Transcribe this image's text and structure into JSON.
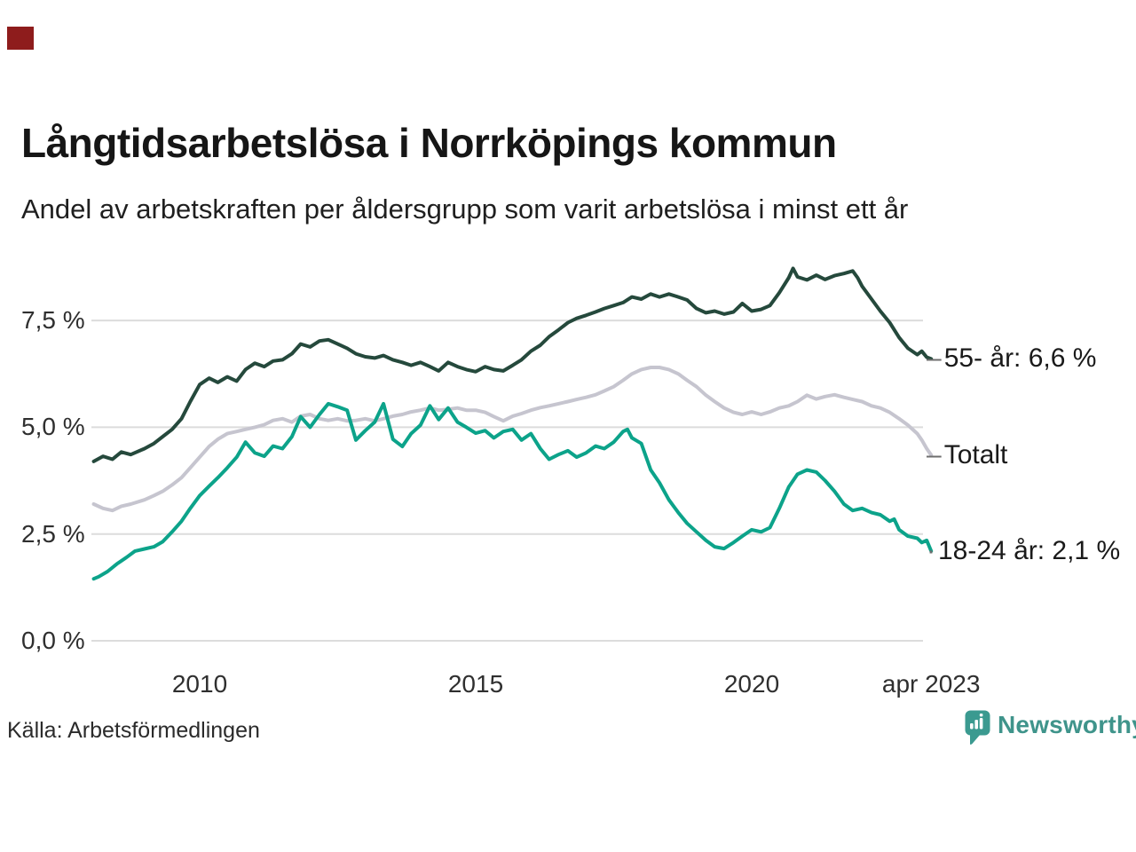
{
  "decor": {
    "corner_swatch_color": "#8e1c1c"
  },
  "header": {
    "title": "Långtidsarbetslösa i Norrköpings kommun",
    "subtitle": "Andel av arbetskraften per åldersgrupp som varit arbetslösa i minst ett år"
  },
  "source": {
    "label": "Källa: Arbetsförmedlingen"
  },
  "branding": {
    "name": "Newsworthy",
    "icon": "newsworthy-bubble-barchart-icon",
    "icon_color": "#3b9a90",
    "text_color": "#3f948b"
  },
  "chart_data": {
    "type": "line",
    "title": "Långtidsarbetslösa i Norrköpings kommun",
    "subtitle": "Andel av arbetskraften per åldersgrupp som varit arbetslösa i minst ett år",
    "unit": "% av arbetskraften",
    "x_axis": {
      "range": [
        2008.08,
        2023.25
      ],
      "ticks": [
        {
          "label": "2010",
          "value": 2010
        },
        {
          "label": "2015",
          "value": 2015
        },
        {
          "label": "2020",
          "value": 2020
        },
        {
          "label": "apr 2023",
          "value": 2023.25
        }
      ]
    },
    "y_axis": {
      "range": [
        0,
        9.3
      ],
      "gridlines": true,
      "gridline_color": "#dcdcdc",
      "ticks": [
        {
          "label": "0,0 %",
          "value": 0
        },
        {
          "label": "2,5 %",
          "value": 2.5
        },
        {
          "label": "5,0 %",
          "value": 5
        },
        {
          "label": "7,5 %",
          "value": 7.5
        }
      ]
    },
    "legend_position": "line-end-labels-right",
    "draw_order": [
      1,
      0,
      2
    ],
    "series": [
      {
        "name": "55- år",
        "end_label": "55- år: 6,6 %",
        "end_label_prefix": "–",
        "last_value": 6.6,
        "color": "#25493c",
        "points": [
          [
            2008.08,
            4.2
          ],
          [
            2008.25,
            4.32
          ],
          [
            2008.42,
            4.25
          ],
          [
            2008.58,
            4.42
          ],
          [
            2008.75,
            4.36
          ],
          [
            2009.0,
            4.5
          ],
          [
            2009.17,
            4.62
          ],
          [
            2009.33,
            4.78
          ],
          [
            2009.5,
            4.95
          ],
          [
            2009.67,
            5.2
          ],
          [
            2009.83,
            5.6
          ],
          [
            2010.0,
            6.0
          ],
          [
            2010.17,
            6.15
          ],
          [
            2010.33,
            6.05
          ],
          [
            2010.5,
            6.18
          ],
          [
            2010.67,
            6.08
          ],
          [
            2010.83,
            6.35
          ],
          [
            2011.0,
            6.5
          ],
          [
            2011.17,
            6.42
          ],
          [
            2011.33,
            6.55
          ],
          [
            2011.5,
            6.58
          ],
          [
            2011.67,
            6.72
          ],
          [
            2011.83,
            6.95
          ],
          [
            2012.0,
            6.88
          ],
          [
            2012.17,
            7.02
          ],
          [
            2012.33,
            7.05
          ],
          [
            2012.5,
            6.95
          ],
          [
            2012.67,
            6.85
          ],
          [
            2012.83,
            6.72
          ],
          [
            2013.0,
            6.65
          ],
          [
            2013.17,
            6.62
          ],
          [
            2013.33,
            6.68
          ],
          [
            2013.5,
            6.58
          ],
          [
            2013.67,
            6.52
          ],
          [
            2013.83,
            6.45
          ],
          [
            2014.0,
            6.52
          ],
          [
            2014.17,
            6.42
          ],
          [
            2014.33,
            6.32
          ],
          [
            2014.5,
            6.52
          ],
          [
            2014.67,
            6.42
          ],
          [
            2014.83,
            6.35
          ],
          [
            2015.0,
            6.3
          ],
          [
            2015.17,
            6.42
          ],
          [
            2015.33,
            6.35
          ],
          [
            2015.5,
            6.32
          ],
          [
            2015.67,
            6.45
          ],
          [
            2015.83,
            6.58
          ],
          [
            2016.0,
            6.78
          ],
          [
            2016.17,
            6.92
          ],
          [
            2016.33,
            7.12
          ],
          [
            2016.5,
            7.28
          ],
          [
            2016.67,
            7.45
          ],
          [
            2016.83,
            7.55
          ],
          [
            2017.0,
            7.62
          ],
          [
            2017.17,
            7.7
          ],
          [
            2017.33,
            7.78
          ],
          [
            2017.5,
            7.85
          ],
          [
            2017.67,
            7.92
          ],
          [
            2017.83,
            8.05
          ],
          [
            2018.0,
            8.0
          ],
          [
            2018.17,
            8.12
          ],
          [
            2018.33,
            8.05
          ],
          [
            2018.5,
            8.12
          ],
          [
            2018.67,
            8.05
          ],
          [
            2018.83,
            7.98
          ],
          [
            2019.0,
            7.78
          ],
          [
            2019.17,
            7.68
          ],
          [
            2019.33,
            7.72
          ],
          [
            2019.5,
            7.65
          ],
          [
            2019.67,
            7.7
          ],
          [
            2019.83,
            7.9
          ],
          [
            2020.0,
            7.72
          ],
          [
            2020.17,
            7.76
          ],
          [
            2020.33,
            7.85
          ],
          [
            2020.5,
            8.15
          ],
          [
            2020.67,
            8.5
          ],
          [
            2020.75,
            8.72
          ],
          [
            2020.83,
            8.52
          ],
          [
            2021.0,
            8.45
          ],
          [
            2021.17,
            8.56
          ],
          [
            2021.33,
            8.46
          ],
          [
            2021.5,
            8.55
          ],
          [
            2021.67,
            8.6
          ],
          [
            2021.83,
            8.66
          ],
          [
            2021.92,
            8.5
          ],
          [
            2022.0,
            8.3
          ],
          [
            2022.17,
            8.0
          ],
          [
            2022.33,
            7.72
          ],
          [
            2022.5,
            7.45
          ],
          [
            2022.67,
            7.1
          ],
          [
            2022.83,
            6.85
          ],
          [
            2023.0,
            6.7
          ],
          [
            2023.08,
            6.78
          ],
          [
            2023.17,
            6.64
          ],
          [
            2023.25,
            6.6
          ]
        ]
      },
      {
        "name": "Totalt",
        "end_label": "Totalt",
        "end_label_prefix": "–",
        "last_value": 4.35,
        "color": "#c6c5cf",
        "points": [
          [
            2008.08,
            3.2
          ],
          [
            2008.25,
            3.1
          ],
          [
            2008.42,
            3.05
          ],
          [
            2008.58,
            3.15
          ],
          [
            2008.75,
            3.2
          ],
          [
            2009.0,
            3.3
          ],
          [
            2009.17,
            3.4
          ],
          [
            2009.33,
            3.5
          ],
          [
            2009.5,
            3.65
          ],
          [
            2009.67,
            3.82
          ],
          [
            2009.83,
            4.05
          ],
          [
            2010.0,
            4.3
          ],
          [
            2010.17,
            4.55
          ],
          [
            2010.33,
            4.72
          ],
          [
            2010.5,
            4.85
          ],
          [
            2010.67,
            4.9
          ],
          [
            2010.83,
            4.95
          ],
          [
            2011.0,
            5.0
          ],
          [
            2011.17,
            5.06
          ],
          [
            2011.33,
            5.16
          ],
          [
            2011.5,
            5.2
          ],
          [
            2011.67,
            5.12
          ],
          [
            2011.83,
            5.26
          ],
          [
            2012.0,
            5.3
          ],
          [
            2012.17,
            5.2
          ],
          [
            2012.33,
            5.16
          ],
          [
            2012.5,
            5.2
          ],
          [
            2012.67,
            5.15
          ],
          [
            2012.83,
            5.16
          ],
          [
            2013.0,
            5.2
          ],
          [
            2013.17,
            5.15
          ],
          [
            2013.33,
            5.2
          ],
          [
            2013.5,
            5.26
          ],
          [
            2013.67,
            5.3
          ],
          [
            2013.83,
            5.36
          ],
          [
            2014.0,
            5.4
          ],
          [
            2014.17,
            5.45
          ],
          [
            2014.33,
            5.4
          ],
          [
            2014.5,
            5.42
          ],
          [
            2014.67,
            5.45
          ],
          [
            2014.83,
            5.4
          ],
          [
            2015.0,
            5.4
          ],
          [
            2015.17,
            5.35
          ],
          [
            2015.33,
            5.25
          ],
          [
            2015.5,
            5.15
          ],
          [
            2015.67,
            5.26
          ],
          [
            2015.83,
            5.32
          ],
          [
            2016.0,
            5.4
          ],
          [
            2016.17,
            5.46
          ],
          [
            2016.33,
            5.5
          ],
          [
            2016.5,
            5.55
          ],
          [
            2016.67,
            5.6
          ],
          [
            2016.83,
            5.65
          ],
          [
            2017.0,
            5.7
          ],
          [
            2017.17,
            5.76
          ],
          [
            2017.33,
            5.85
          ],
          [
            2017.5,
            5.95
          ],
          [
            2017.67,
            6.1
          ],
          [
            2017.83,
            6.25
          ],
          [
            2018.0,
            6.35
          ],
          [
            2018.17,
            6.4
          ],
          [
            2018.33,
            6.4
          ],
          [
            2018.5,
            6.35
          ],
          [
            2018.67,
            6.25
          ],
          [
            2018.83,
            6.1
          ],
          [
            2019.0,
            5.95
          ],
          [
            2019.17,
            5.75
          ],
          [
            2019.33,
            5.6
          ],
          [
            2019.5,
            5.45
          ],
          [
            2019.67,
            5.35
          ],
          [
            2019.83,
            5.3
          ],
          [
            2020.0,
            5.36
          ],
          [
            2020.17,
            5.3
          ],
          [
            2020.33,
            5.36
          ],
          [
            2020.5,
            5.45
          ],
          [
            2020.67,
            5.5
          ],
          [
            2020.83,
            5.6
          ],
          [
            2021.0,
            5.75
          ],
          [
            2021.17,
            5.66
          ],
          [
            2021.33,
            5.72
          ],
          [
            2021.5,
            5.76
          ],
          [
            2021.67,
            5.7
          ],
          [
            2021.83,
            5.65
          ],
          [
            2022.0,
            5.6
          ],
          [
            2022.17,
            5.5
          ],
          [
            2022.33,
            5.45
          ],
          [
            2022.5,
            5.35
          ],
          [
            2022.67,
            5.2
          ],
          [
            2022.83,
            5.05
          ],
          [
            2023.0,
            4.85
          ],
          [
            2023.08,
            4.7
          ],
          [
            2023.17,
            4.5
          ],
          [
            2023.25,
            4.35
          ]
        ]
      },
      {
        "name": "18-24 år",
        "end_label": "18-24 år: 2,1 %",
        "end_label_prefix": "·",
        "last_value": 2.1,
        "color": "#0ca38a",
        "points": [
          [
            2008.08,
            1.45
          ],
          [
            2008.17,
            1.5
          ],
          [
            2008.33,
            1.62
          ],
          [
            2008.5,
            1.8
          ],
          [
            2008.67,
            1.95
          ],
          [
            2008.83,
            2.1
          ],
          [
            2009.0,
            2.15
          ],
          [
            2009.17,
            2.2
          ],
          [
            2009.33,
            2.32
          ],
          [
            2009.5,
            2.55
          ],
          [
            2009.67,
            2.8
          ],
          [
            2009.83,
            3.1
          ],
          [
            2010.0,
            3.4
          ],
          [
            2010.17,
            3.62
          ],
          [
            2010.33,
            3.82
          ],
          [
            2010.5,
            4.05
          ],
          [
            2010.67,
            4.3
          ],
          [
            2010.83,
            4.65
          ],
          [
            2011.0,
            4.4
          ],
          [
            2011.17,
            4.32
          ],
          [
            2011.33,
            4.56
          ],
          [
            2011.5,
            4.5
          ],
          [
            2011.67,
            4.78
          ],
          [
            2011.83,
            5.25
          ],
          [
            2012.0,
            5.0
          ],
          [
            2012.17,
            5.3
          ],
          [
            2012.33,
            5.55
          ],
          [
            2012.5,
            5.48
          ],
          [
            2012.67,
            5.4
          ],
          [
            2012.83,
            4.7
          ],
          [
            2013.0,
            4.92
          ],
          [
            2013.17,
            5.12
          ],
          [
            2013.33,
            5.55
          ],
          [
            2013.5,
            4.72
          ],
          [
            2013.67,
            4.55
          ],
          [
            2013.83,
            4.85
          ],
          [
            2014.0,
            5.05
          ],
          [
            2014.17,
            5.5
          ],
          [
            2014.33,
            5.18
          ],
          [
            2014.5,
            5.45
          ],
          [
            2014.67,
            5.12
          ],
          [
            2014.83,
            5.0
          ],
          [
            2015.0,
            4.86
          ],
          [
            2015.17,
            4.92
          ],
          [
            2015.33,
            4.75
          ],
          [
            2015.5,
            4.9
          ],
          [
            2015.67,
            4.95
          ],
          [
            2015.83,
            4.7
          ],
          [
            2016.0,
            4.85
          ],
          [
            2016.17,
            4.5
          ],
          [
            2016.33,
            4.25
          ],
          [
            2016.5,
            4.36
          ],
          [
            2016.67,
            4.45
          ],
          [
            2016.83,
            4.3
          ],
          [
            2017.0,
            4.4
          ],
          [
            2017.17,
            4.56
          ],
          [
            2017.33,
            4.5
          ],
          [
            2017.5,
            4.65
          ],
          [
            2017.67,
            4.9
          ],
          [
            2017.75,
            4.95
          ],
          [
            2017.83,
            4.75
          ],
          [
            2018.0,
            4.62
          ],
          [
            2018.17,
            4.0
          ],
          [
            2018.33,
            3.7
          ],
          [
            2018.5,
            3.3
          ],
          [
            2018.67,
            3.0
          ],
          [
            2018.83,
            2.75
          ],
          [
            2019.0,
            2.55
          ],
          [
            2019.17,
            2.35
          ],
          [
            2019.33,
            2.2
          ],
          [
            2019.5,
            2.16
          ],
          [
            2019.67,
            2.3
          ],
          [
            2019.83,
            2.45
          ],
          [
            2020.0,
            2.6
          ],
          [
            2020.17,
            2.55
          ],
          [
            2020.33,
            2.65
          ],
          [
            2020.5,
            3.1
          ],
          [
            2020.67,
            3.6
          ],
          [
            2020.83,
            3.9
          ],
          [
            2021.0,
            4.0
          ],
          [
            2021.17,
            3.95
          ],
          [
            2021.33,
            3.75
          ],
          [
            2021.5,
            3.5
          ],
          [
            2021.67,
            3.2
          ],
          [
            2021.83,
            3.05
          ],
          [
            2022.0,
            3.1
          ],
          [
            2022.17,
            3.0
          ],
          [
            2022.33,
            2.95
          ],
          [
            2022.5,
            2.8
          ],
          [
            2022.58,
            2.85
          ],
          [
            2022.67,
            2.6
          ],
          [
            2022.83,
            2.45
          ],
          [
            2023.0,
            2.4
          ],
          [
            2023.08,
            2.3
          ],
          [
            2023.17,
            2.35
          ],
          [
            2023.25,
            2.1
          ]
        ]
      }
    ]
  }
}
